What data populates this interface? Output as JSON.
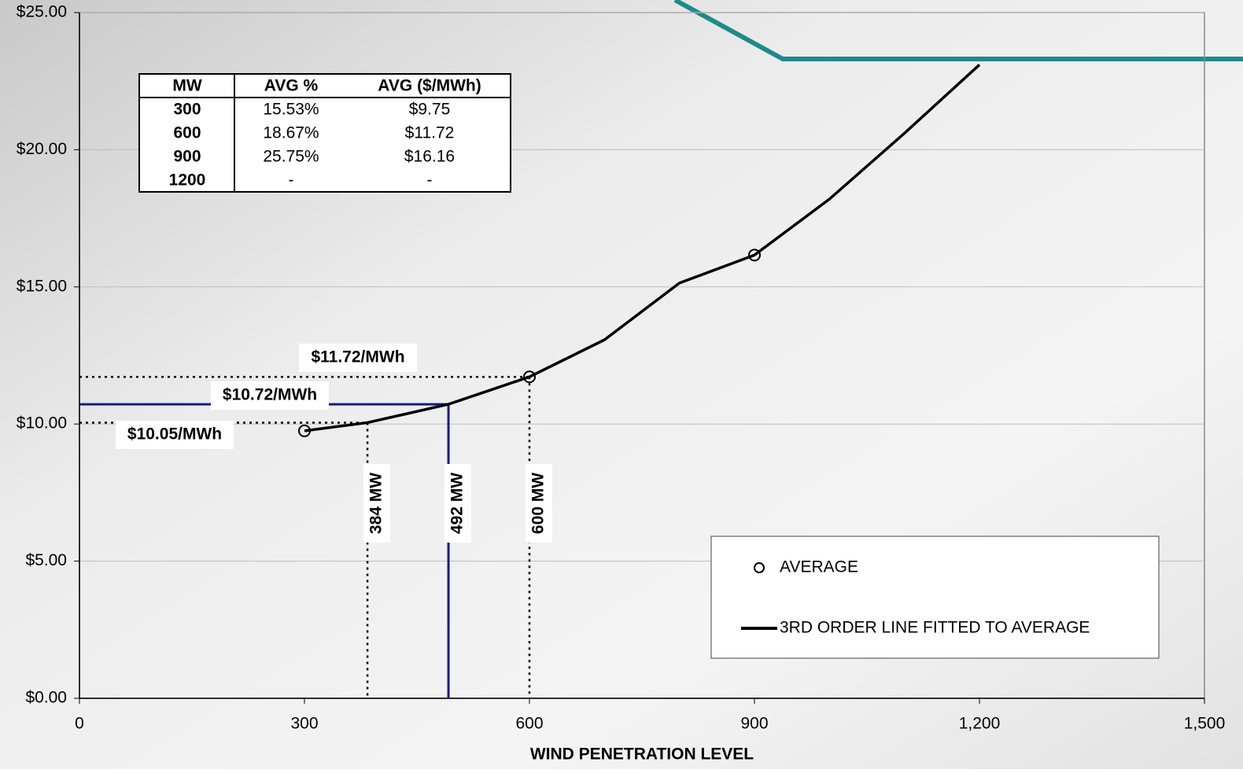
{
  "chart_data": {
    "type": "scatter",
    "x_label": "WIND PENETRATION LEVEL",
    "xlim": [
      0,
      1500
    ],
    "ylim": [
      0,
      25
    ],
    "xticks": [
      0,
      300,
      600,
      900,
      {
        "value": 1200,
        "label": "1,200"
      },
      {
        "value": 1500,
        "label": "1,500"
      }
    ],
    "yticks": [
      {
        "value": 0,
        "label": "$0.00"
      },
      {
        "value": 5,
        "label": "$5.00"
      },
      {
        "value": 10,
        "label": "$10.00"
      },
      {
        "value": 15,
        "label": "$15.00"
      },
      {
        "value": 20,
        "label": "$20.00"
      },
      {
        "value": 25,
        "label": "$25.00"
      }
    ],
    "grid": true,
    "legend": "lower right",
    "series": [
      {
        "name": "AVERAGE",
        "type": "scatter",
        "color": "#000000",
        "x": [
          300,
          600,
          900
        ],
        "values": [
          9.75,
          11.72,
          16.16
        ]
      },
      {
        "name": "3RD ORDER LINE FITTED TO AVERAGE",
        "type": "line",
        "color": "#000000",
        "x": [
          300,
          384,
          492,
          600,
          700,
          800,
          900,
          1000,
          1100,
          1200
        ],
        "values": [
          9.75,
          10.05,
          10.72,
          11.72,
          13.07,
          15.14,
          16.16,
          18.2,
          20.6,
          23.1
        ]
      }
    ],
    "reference_lines": [
      {
        "x": 384,
        "y": 10.05,
        "y_text": "$10.05/MWh",
        "x_text": "384 MW",
        "color": "#000000",
        "style": "dotted"
      },
      {
        "x": 492,
        "y": 10.72,
        "y_text": "$10.72/MWh",
        "x_text": "492 MW",
        "color": "#1a1a80",
        "style": "solid"
      },
      {
        "x": 600,
        "y": 11.72,
        "y_text": "$11.72/MWh",
        "x_text": "600 MW",
        "color": "#000000",
        "style": "dotted"
      }
    ],
    "table": {
      "columns": [
        "MW",
        "AVG %",
        "AVG ($/MWh)"
      ],
      "rows": [
        [
          "300",
          "15.53%",
          "$9.75"
        ],
        [
          "600",
          "18.67%",
          "$11.72"
        ],
        [
          "900",
          "25.75%",
          "$16.16"
        ],
        [
          "1200",
          "-",
          "-"
        ]
      ]
    }
  }
}
